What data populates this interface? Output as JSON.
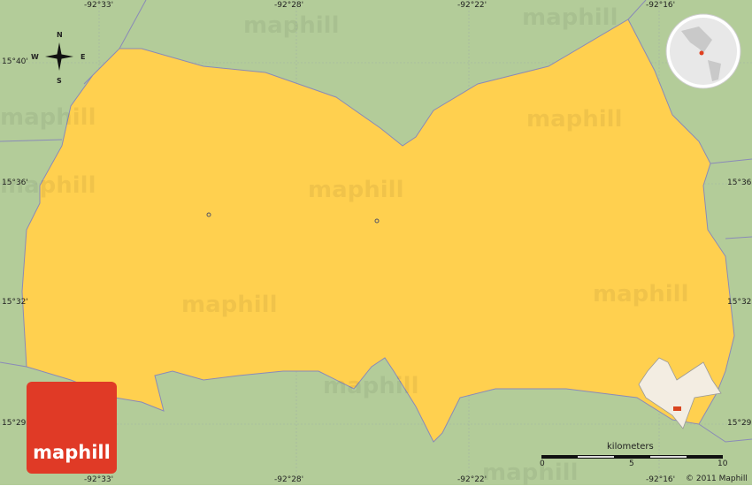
{
  "map": {
    "colors": {
      "land_outside": "#b3cc99",
      "region": "#ffd04f",
      "border": "#8a8ab8",
      "logo": "#e03a26"
    },
    "longitude_labels": [
      "-92°33'",
      "-92°28'",
      "-92°22'",
      "-92°16'"
    ],
    "latitude_labels": [
      "15°40'",
      "15°36'",
      "15°32'",
      "15°29'"
    ],
    "compass": {
      "n": "N",
      "s": "S",
      "e": "E",
      "w": "W"
    },
    "watermark": "maphill",
    "logo_text": "maphill",
    "scale": {
      "unit": "kilometers",
      "ticks": [
        "0",
        "5",
        "10"
      ]
    },
    "copyright": "© 2011 Maphill"
  }
}
